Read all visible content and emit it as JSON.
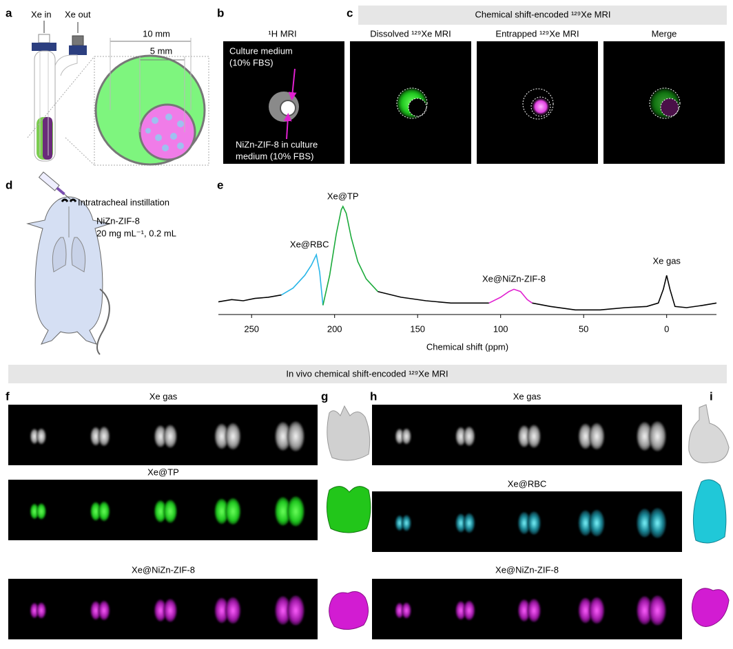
{
  "panels": {
    "a": {
      "label": "a",
      "xe_in": "Xe in",
      "xe_out": "Xe out",
      "outer_diameter": "10 mm",
      "inner_diameter": "5 mm"
    },
    "b": {
      "label": "b",
      "title": "¹H MRI",
      "annotation_1": [
        "Culture medium",
        "(10% FBS)"
      ],
      "annotation_2": [
        "NiZn-ZIF-8 in culture",
        "medium (10% FBS)"
      ]
    },
    "c": {
      "label": "c",
      "header": "Chemical shift-encoded ¹²⁹Xe MRI",
      "images": [
        "Dissolved ¹²⁹Xe MRI",
        "Entrapped ¹²⁹Xe MRI",
        "Merge"
      ]
    },
    "d": {
      "label": "d",
      "route": "Intratracheal instillation",
      "dose": [
        "NiZn-ZIF-8",
        "20 mg mL⁻¹, 0.2 mL"
      ]
    },
    "e": {
      "label": "e"
    },
    "in_vivo_header": "In vivo chemical shift-encoded ¹²⁹Xe MRI",
    "f": {
      "label": "f",
      "rows": [
        "Xe gas",
        "Xe@TP",
        "Xe@NiZn-ZIF-8"
      ]
    },
    "g": {
      "label": "g"
    },
    "h": {
      "label": "h",
      "rows": [
        "Xe gas",
        "Xe@RBC",
        "Xe@NiZn-ZIF-8"
      ]
    },
    "i": {
      "label": "i"
    }
  },
  "chart_data": {
    "type": "line",
    "xlabel": "Chemical shift (ppm)",
    "xlim": [
      270,
      -30
    ],
    "xticks": [
      250,
      200,
      150,
      100,
      50,
      0
    ],
    "ylim": [
      0,
      1
    ],
    "series": [
      {
        "color": "#000000",
        "x": [
          270,
          262,
          255,
          248,
          240,
          232
        ],
        "values": [
          0.11,
          0.13,
          0.12,
          0.14,
          0.15,
          0.17
        ]
      },
      {
        "name": "Xe@RBC",
        "color": "#29b6e8",
        "x": [
          232,
          225,
          218,
          214,
          211,
          209,
          207
        ],
        "values": [
          0.17,
          0.23,
          0.34,
          0.43,
          0.52,
          0.37,
          0.08
        ]
      },
      {
        "name": "Xe@TP",
        "color": "#1aaa3a",
        "x": [
          207,
          203,
          199,
          196,
          195,
          193,
          190,
          186,
          181,
          174
        ],
        "values": [
          0.08,
          0.34,
          0.7,
          0.91,
          0.94,
          0.88,
          0.67,
          0.46,
          0.31,
          0.2
        ]
      },
      {
        "color": "#000000",
        "x": [
          174,
          160,
          145,
          130,
          115,
          107
        ],
        "values": [
          0.2,
          0.15,
          0.12,
          0.1,
          0.1,
          0.1
        ]
      },
      {
        "name": "Xe@NiZn-ZIF-8",
        "color": "#e020d0",
        "x": [
          107,
          100,
          95,
          92,
          88,
          84,
          81
        ],
        "values": [
          0.1,
          0.15,
          0.2,
          0.22,
          0.2,
          0.13,
          0.1
        ]
      },
      {
        "color": "#000000",
        "x": [
          81,
          70,
          55,
          40,
          25,
          12,
          5,
          2,
          0,
          -2,
          -5,
          -12,
          -22,
          -30
        ],
        "values": [
          0.1,
          0.07,
          0.04,
          0.04,
          0.06,
          0.07,
          0.1,
          0.22,
          0.34,
          0.22,
          0.07,
          0.06,
          0.08,
          0.1
        ]
      }
    ],
    "annotations": [
      {
        "text": "Xe gas",
        "x": 0
      }
    ]
  }
}
